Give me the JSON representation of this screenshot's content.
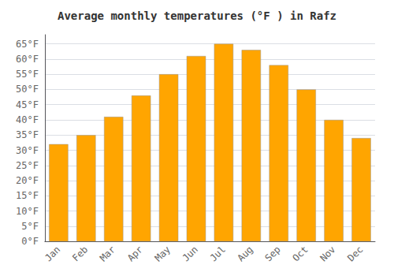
{
  "chart_data": {
    "type": "bar",
    "title": "Average monthly temperatures (°F ) in Rafz",
    "categories": [
      "Jan",
      "Feb",
      "Mar",
      "Apr",
      "May",
      "Jun",
      "Jul",
      "Aug",
      "Sep",
      "Oct",
      "Nov",
      "Dec"
    ],
    "values": [
      32,
      35,
      41,
      48,
      55,
      61,
      65,
      63,
      58,
      50,
      40,
      34
    ],
    "color": "#FFA500",
    "ylim": [
      0,
      68
    ],
    "yticks": [
      {
        "value": 0,
        "label": "0°F"
      },
      {
        "value": 5,
        "label": "5°F"
      },
      {
        "value": 10,
        "label": "10°F"
      },
      {
        "value": 15,
        "label": "15°F"
      },
      {
        "value": 20,
        "label": "20°F"
      },
      {
        "value": 25,
        "label": "25°F"
      },
      {
        "value": 30,
        "label": "30°F"
      },
      {
        "value": 35,
        "label": "35°F"
      },
      {
        "value": 40,
        "label": "40°F"
      },
      {
        "value": 45,
        "label": "45°F"
      },
      {
        "value": 50,
        "label": "50°F"
      },
      {
        "value": 55,
        "label": "55°F"
      },
      {
        "value": 60,
        "label": "60°F"
      },
      {
        "value": 65,
        "label": "65°F"
      }
    ],
    "grid": true
  }
}
